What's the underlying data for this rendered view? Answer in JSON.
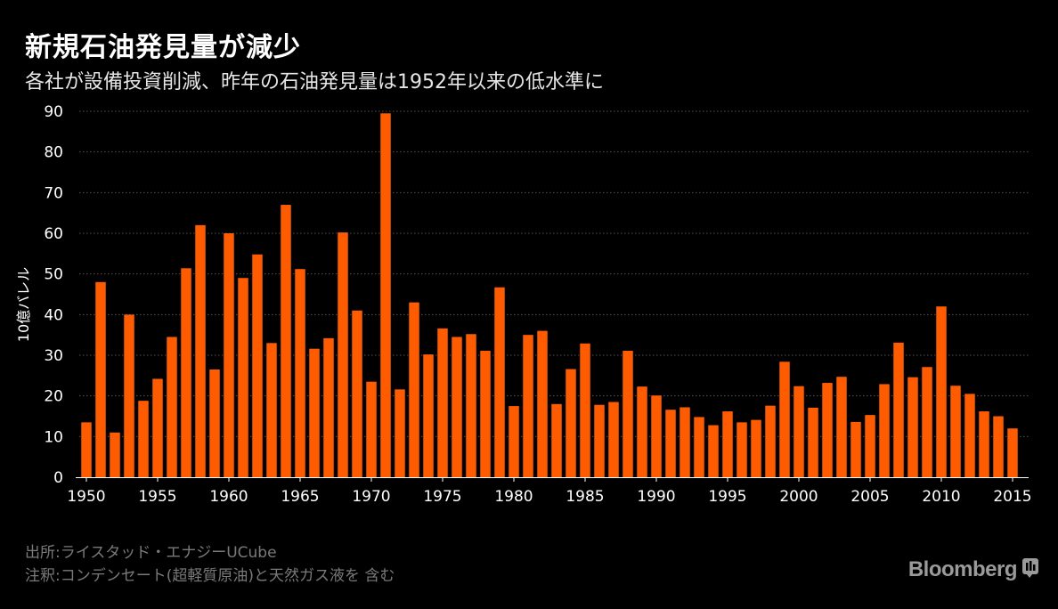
{
  "header": {
    "title": "新規石油発見量が減少",
    "subtitle": "各社が設備投資削減、昨年の石油発見量は1952年以来の低水準に"
  },
  "footer": {
    "source": "出所:ライスタッド・エナジーUCube",
    "note": "注釈:コンデンセート(超軽質原油)と天然ガス液を 含む",
    "brand": "Bloomberg",
    "brand_icon": "bloomberg-terminal-icon"
  },
  "colors": {
    "bar": "#ff5b00",
    "background": "#000000",
    "text": "#ffffff",
    "grid": "#555555",
    "footer_text": "#7a7a7a"
  },
  "chart_data": {
    "type": "bar",
    "title": "新規石油発見量が減少",
    "ylabel": "10億バレル",
    "xlabel": "",
    "ylim": [
      0,
      90
    ],
    "yticks": [
      0,
      10,
      20,
      30,
      40,
      50,
      60,
      70,
      80,
      90
    ],
    "xticks": [
      1950,
      1955,
      1960,
      1965,
      1970,
      1975,
      1980,
      1985,
      1990,
      1995,
      2000,
      2005,
      2010,
      2015
    ],
    "grid": "horizontal-dotted",
    "legend": "none",
    "categories": [
      1950,
      1951,
      1952,
      1953,
      1954,
      1955,
      1956,
      1957,
      1958,
      1959,
      1960,
      1961,
      1962,
      1963,
      1964,
      1965,
      1966,
      1967,
      1968,
      1969,
      1970,
      1971,
      1972,
      1973,
      1974,
      1975,
      1976,
      1977,
      1978,
      1979,
      1980,
      1981,
      1982,
      1983,
      1984,
      1985,
      1986,
      1987,
      1988,
      1989,
      1990,
      1991,
      1992,
      1993,
      1994,
      1995,
      1996,
      1997,
      1998,
      1999,
      2000,
      2001,
      2002,
      2003,
      2004,
      2005,
      2006,
      2007,
      2008,
      2009,
      2010,
      2011,
      2012,
      2013,
      2014,
      2015
    ],
    "values": [
      13.5,
      48,
      11,
      40,
      18.8,
      24.2,
      34.5,
      51.4,
      62,
      26.5,
      60,
      49,
      54.8,
      33,
      67,
      51.2,
      31.6,
      34.2,
      60.2,
      41,
      23.5,
      89.5,
      21.6,
      43,
      30.2,
      36.6,
      34.5,
      35.2,
      31.1,
      46.7,
      17.5,
      35,
      36,
      18,
      26.6,
      32.9,
      17.8,
      18.5,
      31.1,
      22.3,
      20.1,
      16.6,
      17.2,
      14.8,
      12.8,
      16.2,
      13.5,
      14.1,
      17.6,
      28.4,
      22.4,
      17.1,
      23.2,
      24.7,
      13.6,
      15.3,
      22.9,
      33.1,
      24.6,
      27.1,
      42,
      22.5,
      20.5,
      16.2,
      15,
      12
    ]
  }
}
